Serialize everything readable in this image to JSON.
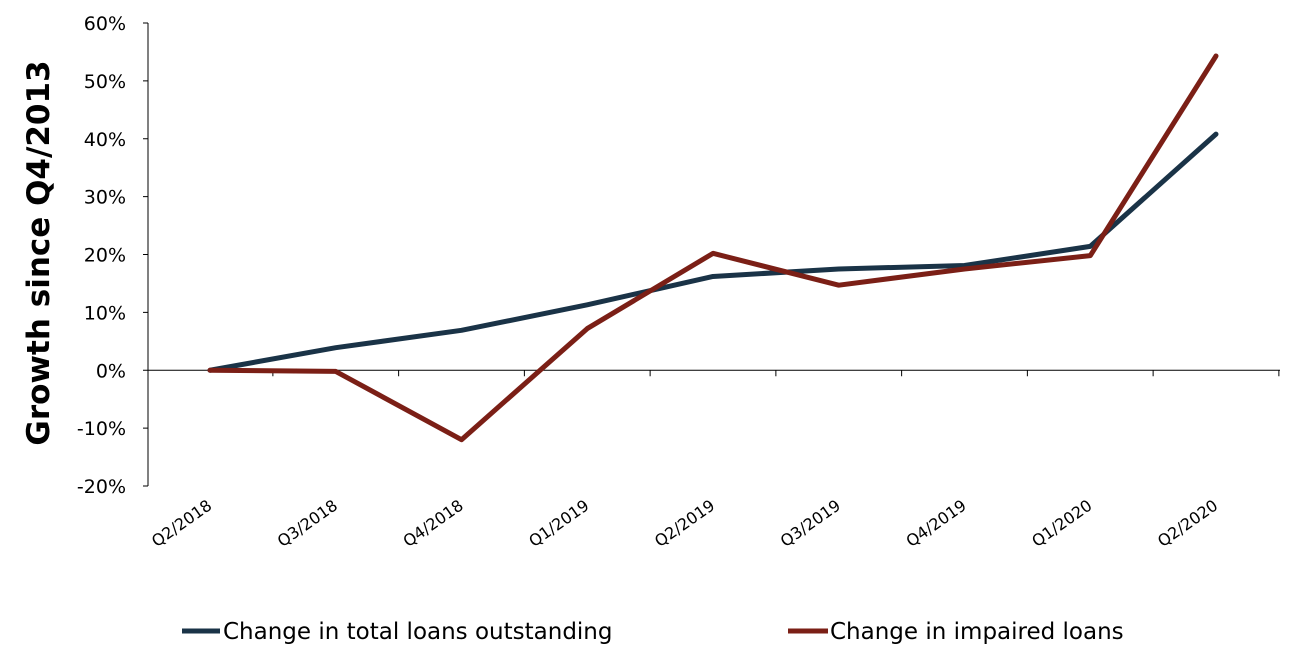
{
  "chart_data": {
    "type": "line",
    "title": "",
    "xlabel": "",
    "ylabel": "Growth since Q4/2013",
    "categories": [
      "Q2/2018",
      "Q3/2018",
      "Q4/2018",
      "Q1/2019",
      "Q2/2019",
      "Q3/2019",
      "Q4/2019",
      "Q1/2020",
      "Q2/2020"
    ],
    "y_ticks": [
      "60%",
      "50%",
      "40%",
      "30%",
      "20%",
      "10%",
      "0%",
      "-10%",
      "-20%"
    ],
    "ylim": [
      -20,
      60
    ],
    "grid": false,
    "legend_position": "bottom",
    "series": [
      {
        "name": "Change in total loans outstanding",
        "color": "#1a3347",
        "values": [
          0,
          3.9,
          6.9,
          11.3,
          16.2,
          17.5,
          18.1,
          21.4,
          40.8
        ]
      },
      {
        "name": "Change in impaired loans",
        "color": "#7b1f16",
        "values": [
          0,
          -0.2,
          -12.0,
          7.2,
          20.2,
          14.7,
          17.5,
          19.8,
          54.3
        ]
      }
    ]
  }
}
